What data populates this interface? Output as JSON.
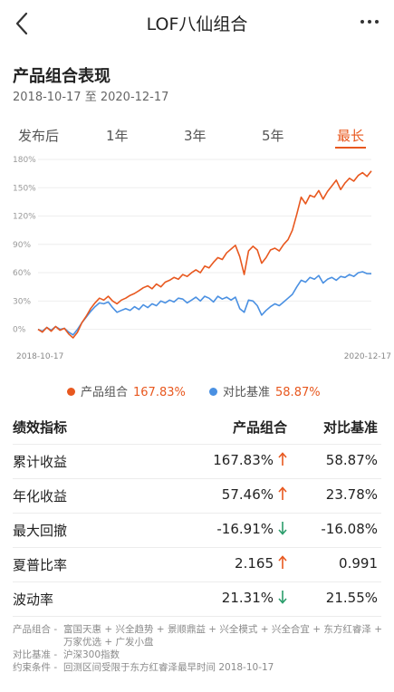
{
  "nav": {
    "title": "LOF八仙组合"
  },
  "header": {
    "title": "产品组合表现",
    "date_from": "2018-10-17",
    "date_sep": "至",
    "date_to": "2020-12-17"
  },
  "tabs": [
    {
      "label": "发布后",
      "active": false
    },
    {
      "label": "1年",
      "active": false
    },
    {
      "label": "3年",
      "active": false
    },
    {
      "label": "5年",
      "active": false
    },
    {
      "label": "最长",
      "active": true
    }
  ],
  "colors": {
    "accent": "#e8581f",
    "portfolio": "#e8581f",
    "benchmark": "#4a90e2",
    "up": "#e8581f",
    "down": "#2a9d6b"
  },
  "chart_data": {
    "type": "line",
    "x_start_label": "2018-10-17",
    "x_end_label": "2020-12-17",
    "y_ticks": [
      "180%",
      "150%",
      "120%",
      "90%",
      "60%",
      "30%",
      "0%"
    ],
    "ylim": [
      -10,
      180
    ],
    "grid": true,
    "series": [
      {
        "name": "产品组合",
        "color": "#e8581f",
        "values": [
          0,
          -3,
          2,
          -2,
          3,
          -1,
          1,
          -5,
          -9,
          -3,
          7,
          14,
          22,
          28,
          33,
          31,
          35,
          30,
          27,
          31,
          33,
          36,
          38,
          41,
          44,
          46,
          43,
          48,
          45,
          50,
          52,
          55,
          53,
          58,
          56,
          60,
          63,
          60,
          67,
          65,
          71,
          76,
          74,
          81,
          85,
          89,
          77,
          58,
          83,
          88,
          84,
          70,
          76,
          84,
          86,
          83,
          90,
          95,
          105,
          122,
          140,
          133,
          142,
          140,
          147,
          138,
          146,
          152,
          158,
          148,
          155,
          160,
          157,
          163,
          166,
          162,
          167.83
        ]
      },
      {
        "name": "对比基准",
        "color": "#4a90e2",
        "values": [
          0,
          -2,
          2,
          -1,
          3,
          0,
          1,
          -3,
          -6,
          0,
          7,
          13,
          19,
          24,
          28,
          27,
          29,
          23,
          18,
          20,
          22,
          20,
          24,
          21,
          26,
          23,
          27,
          25,
          30,
          28,
          31,
          29,
          33,
          32,
          28,
          31,
          34,
          30,
          35,
          33,
          29,
          35,
          32,
          34,
          31,
          34,
          22,
          18,
          31,
          30,
          25,
          15,
          20,
          24,
          27,
          25,
          29,
          33,
          37,
          45,
          52,
          50,
          55,
          53,
          57,
          49,
          53,
          55,
          52,
          56,
          55,
          58,
          56,
          60,
          61,
          59,
          58.87
        ]
      }
    ]
  },
  "legend": {
    "portfolio": {
      "label": "产品组合",
      "value": "167.83%"
    },
    "benchmark": {
      "label": "对比基准",
      "value": "58.87%"
    }
  },
  "table": {
    "headers": [
      "绩效指标",
      "产品组合",
      "对比基准"
    ],
    "rows": [
      {
        "metric": "累计收益",
        "portfolio": "167.83%",
        "dir": "up",
        "benchmark": "58.87%"
      },
      {
        "metric": "年化收益",
        "portfolio": "57.46%",
        "dir": "up",
        "benchmark": "23.78%"
      },
      {
        "metric": "最大回撤",
        "portfolio": "-16.91%",
        "dir": "down",
        "benchmark": "-16.08%"
      },
      {
        "metric": "夏普比率",
        "portfolio": "2.165",
        "dir": "up",
        "benchmark": "0.991"
      },
      {
        "metric": "波动率",
        "portfolio": "21.31%",
        "dir": "down",
        "benchmark": "21.55%"
      }
    ]
  },
  "footnotes": [
    {
      "key": "产品组合",
      "sep": "-",
      "value": "富国天惠 + 兴全趋势 + 景顺鼎益 + 兴全模式 + 兴全合宜 + 东方红睿泽 + 万家优选 + 广发小盘"
    },
    {
      "key": "对比基准",
      "sep": "-",
      "value": "沪深300指数"
    },
    {
      "key": "约束条件",
      "sep": "-",
      "value": "回测区间受限于东方红睿泽最早时间 2018-10-17"
    }
  ]
}
